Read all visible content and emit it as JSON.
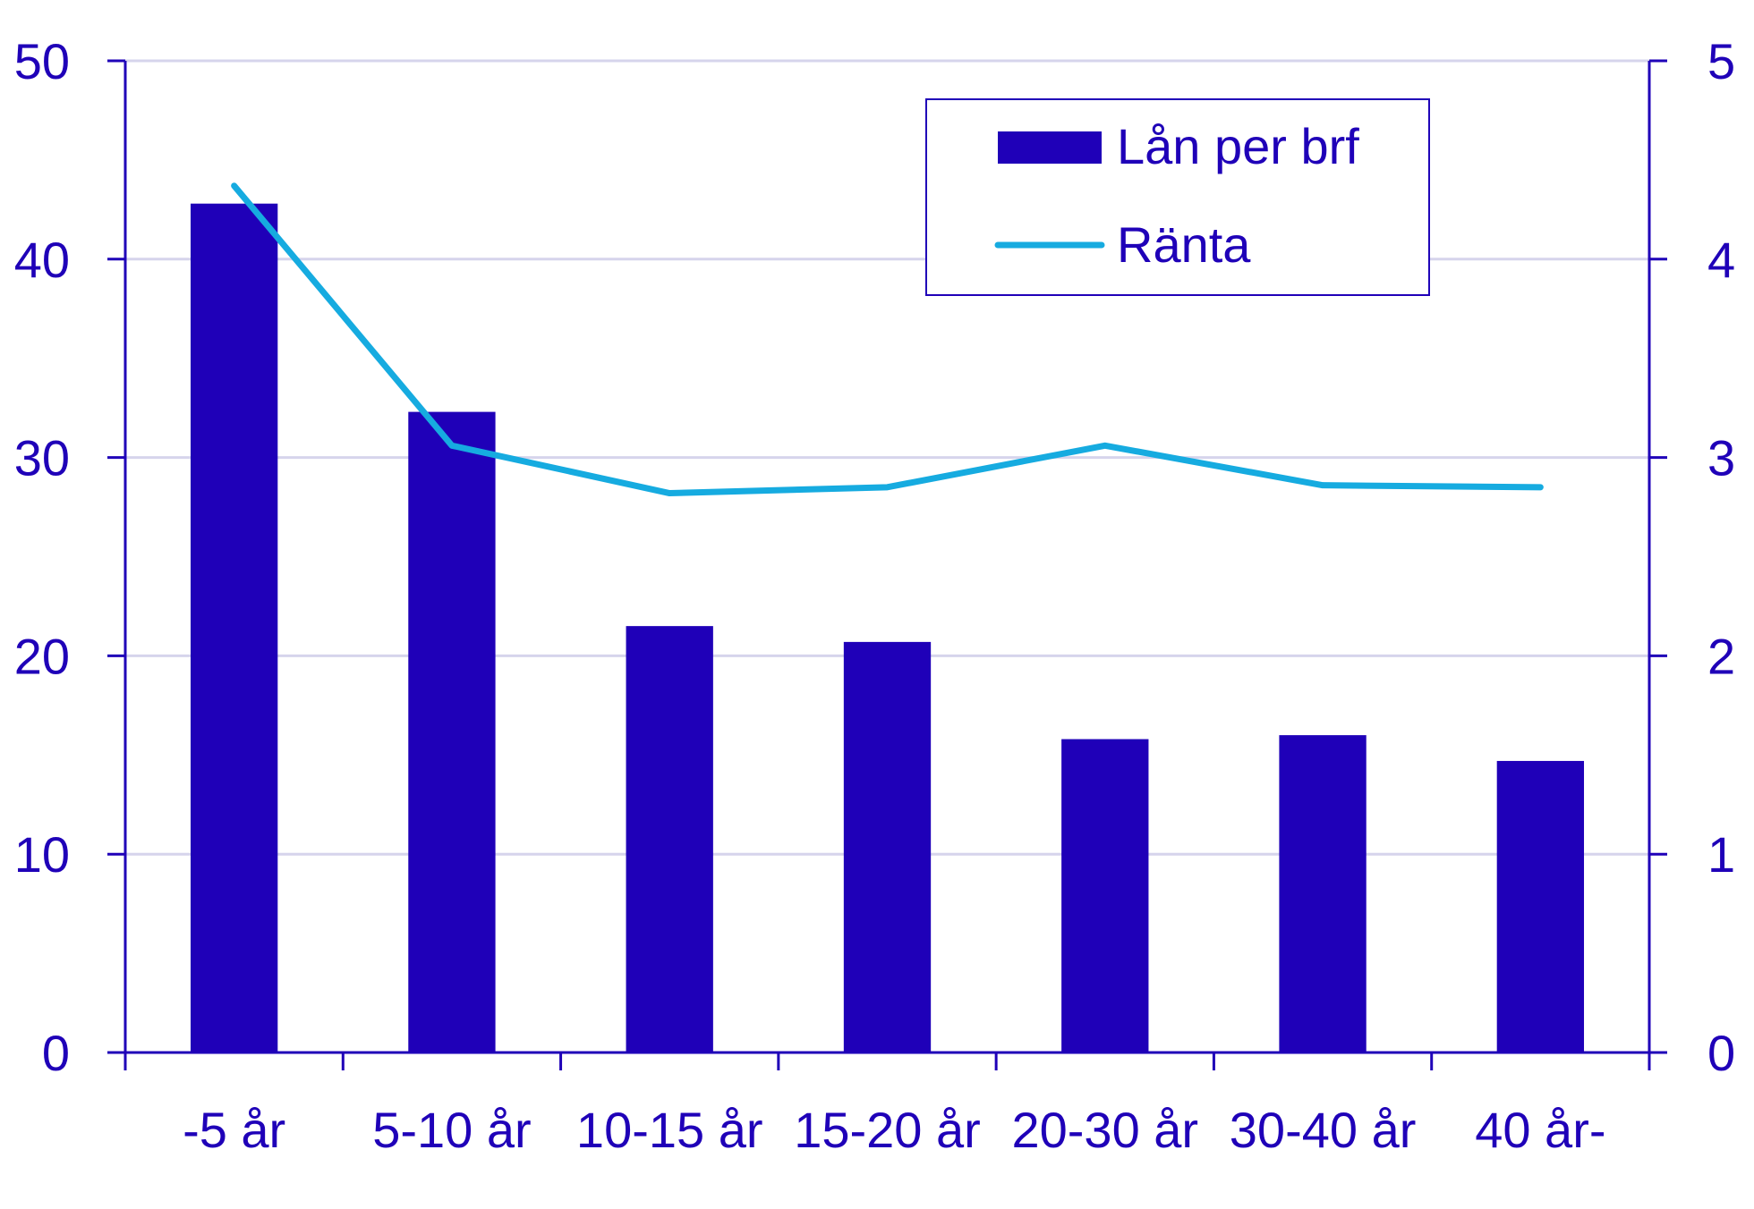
{
  "chart_data": {
    "type": "bar",
    "categories": [
      "-5 år",
      "5-10 år",
      "10-15 år",
      "15-20 år",
      "20-30 år",
      "30-40 år",
      "40 år-"
    ],
    "series": [
      {
        "name": "Lån per brf",
        "type": "bar",
        "axis": "left",
        "values": [
          42.8,
          32.3,
          21.5,
          20.7,
          15.8,
          16.0,
          14.7
        ]
      },
      {
        "name": "Ränta",
        "type": "line",
        "axis": "right",
        "values": [
          4.37,
          3.06,
          2.82,
          2.85,
          3.06,
          2.86,
          2.85
        ]
      }
    ],
    "ylim": [
      0,
      50
    ],
    "y2lim": [
      0,
      5
    ],
    "yticks": [
      "0",
      "10",
      "20",
      "30",
      "40",
      "50"
    ],
    "y2ticks": [
      "0",
      "1",
      "2",
      "3",
      "4",
      "5"
    ],
    "grid": true,
    "legend": "top-right",
    "colors": {
      "bar": "#1f00b8",
      "line": "#16abe0",
      "axis": "#1f00b8",
      "grid": "#d6d4ec",
      "text": "#1f00b8"
    }
  }
}
